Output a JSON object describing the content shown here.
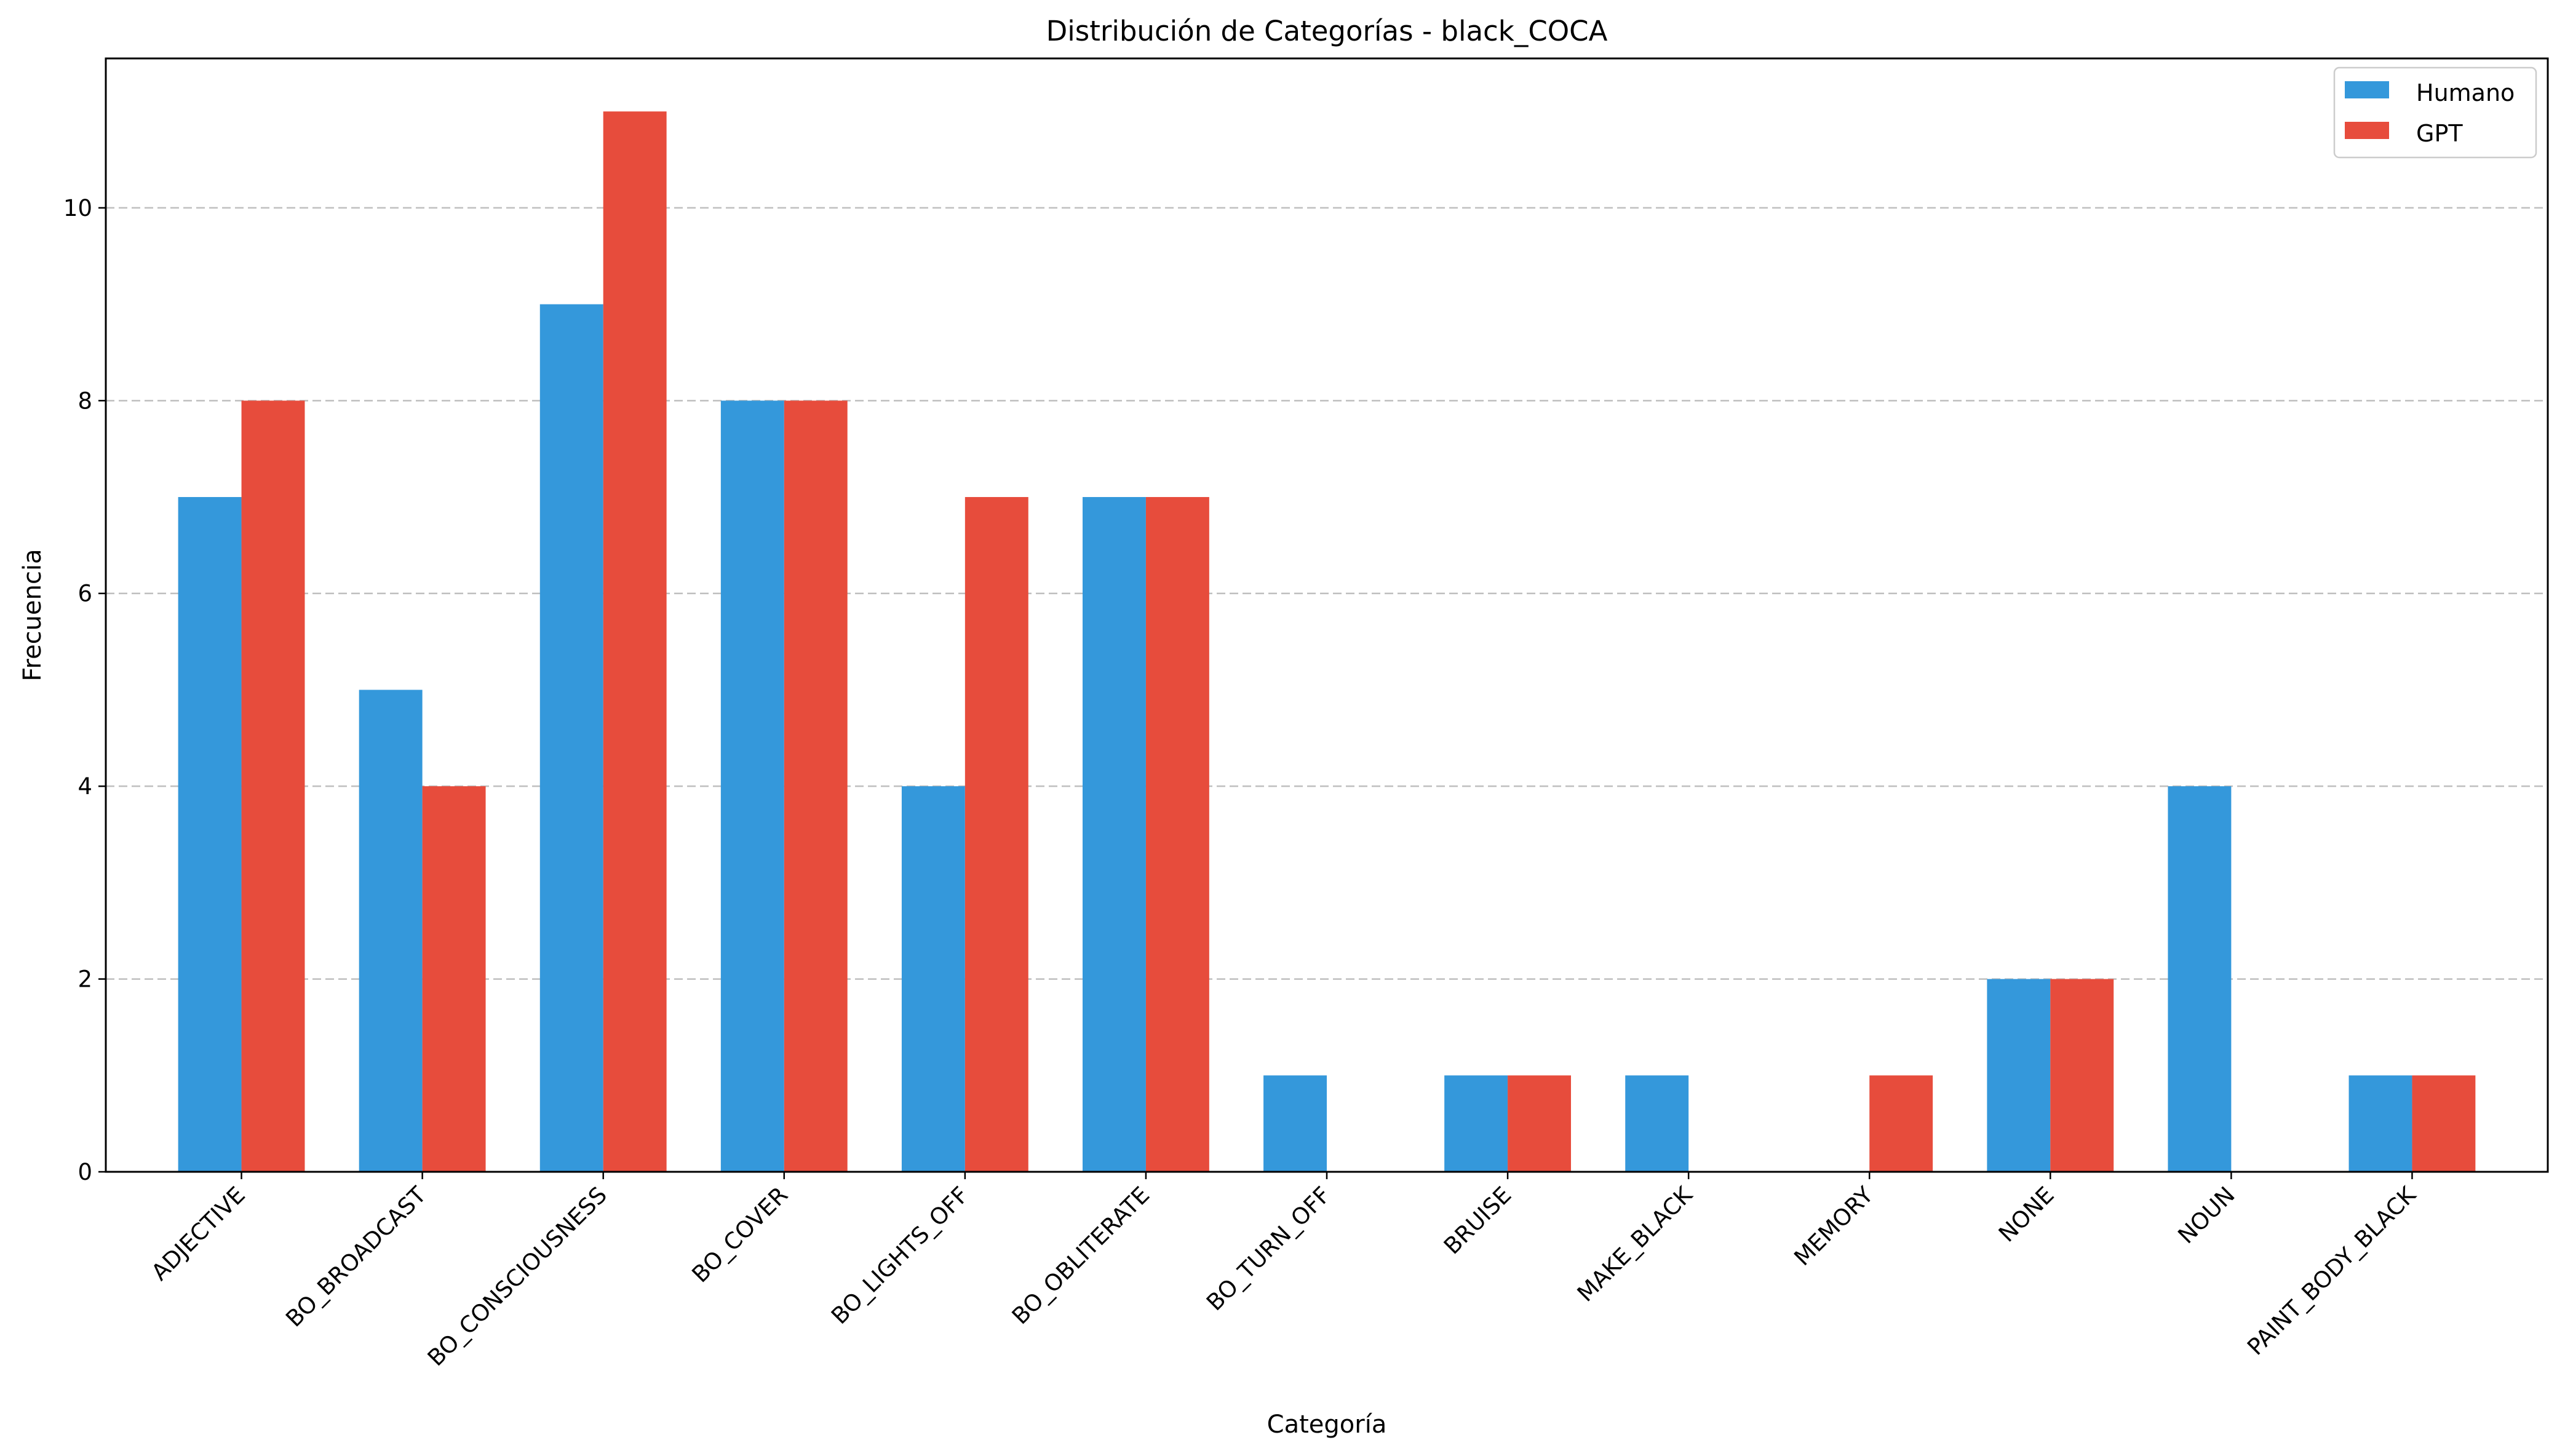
{
  "chart_data": {
    "type": "bar",
    "title": "Distribución de Categorías - black_COCA",
    "xlabel": "Categoría",
    "ylabel": "Frecuencia",
    "categories": [
      "ADJECTIVE",
      "BO_BROADCAST",
      "BO_CONSCIOUSNESS",
      "BO_COVER",
      "BO_LIGHTS_OFF",
      "BO_OBLITERATE",
      "BO_TURN_OFF",
      "BRUISE",
      "MAKE_BLACK",
      "MEMORY",
      "NONE",
      "NOUN",
      "PAINT_BODY_BLACK"
    ],
    "series": [
      {
        "name": "Humano",
        "color": "#3498db",
        "values": [
          7,
          5,
          9,
          8,
          4,
          7,
          1,
          1,
          1,
          0,
          2,
          4,
          1
        ]
      },
      {
        "name": "GPT",
        "color": "#e74c3c",
        "values": [
          8,
          4,
          11,
          8,
          7,
          7,
          0,
          1,
          0,
          1,
          2,
          0,
          1
        ]
      }
    ],
    "ylim": [
      0,
      11.55
    ],
    "yticks": [
      0,
      2,
      4,
      6,
      8,
      10
    ],
    "grid": "y-dashed",
    "legend_position": "top-right"
  }
}
